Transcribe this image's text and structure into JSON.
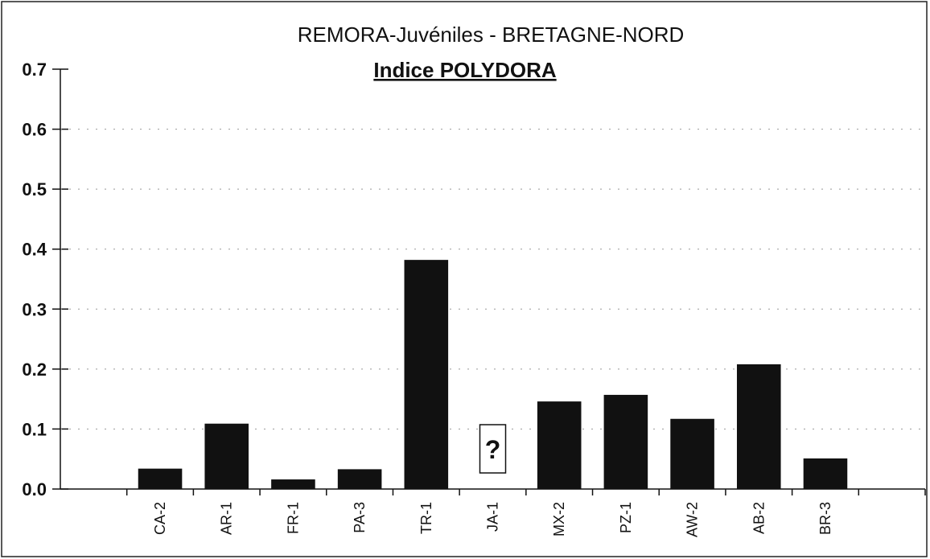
{
  "chart_data": {
    "type": "bar",
    "title": "REMORA-Juvéniles - BRETAGNE-NORD",
    "subtitle": "Indice POLYDORA",
    "categories": [
      null,
      "CA-2",
      "AR-1",
      "FR-1",
      "PA-3",
      "TR-1",
      "JA-1",
      "MX-2",
      "PZ-1",
      "AW-2",
      "AB-2",
      "BR-3",
      null
    ],
    "values": [
      null,
      0.034,
      0.109,
      0.016,
      0.033,
      0.382,
      null,
      0.146,
      0.157,
      0.117,
      0.208,
      0.051,
      null
    ],
    "color": "#111111",
    "ylim": [
      0,
      0.7
    ],
    "yticks": [
      {
        "value": 0,
        "label": "0.0"
      },
      0.1,
      0.2,
      0.3,
      0.4,
      0.5,
      0.6,
      0.7
    ],
    "grid": true,
    "annotations": [
      {
        "text": "?",
        "category": "JA-1"
      }
    ]
  }
}
